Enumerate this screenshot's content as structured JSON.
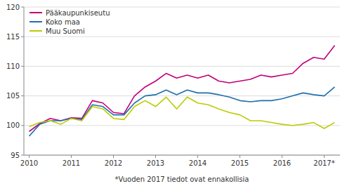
{
  "chart_data": {
    "type": "line",
    "annotations": [
      "*Vuoden 2017 tiedot ovat ennakollisia"
    ],
    "categories": [
      "2010",
      null,
      null,
      null,
      "2011",
      null,
      null,
      null,
      "2012",
      null,
      null,
      null,
      "2013",
      null,
      null,
      null,
      "2014",
      null,
      null,
      null,
      "2015",
      null,
      null,
      null,
      "2016",
      null,
      null,
      null,
      "2017*",
      null
    ],
    "series": [
      {
        "name": "Pääkaupunkiseutu",
        "color": "#C0007B",
        "values": [
          99.0,
          100.3,
          101.2,
          100.8,
          101.3,
          101.2,
          104.2,
          103.8,
          102.2,
          102.0,
          105.0,
          106.5,
          107.5,
          108.8,
          108.0,
          108.5,
          108.0,
          108.5,
          107.5,
          107.2,
          107.5,
          107.8,
          108.5,
          108.2,
          108.5,
          108.8,
          110.5,
          111.5,
          111.2,
          113.5
        ]
      },
      {
        "name": "Koko maa",
        "color": "#1F6FAD",
        "values": [
          98.2,
          100.2,
          100.8,
          100.8,
          101.2,
          101.0,
          103.5,
          103.2,
          101.8,
          101.8,
          103.8,
          105.0,
          105.2,
          106.0,
          105.2,
          106.0,
          105.5,
          105.5,
          105.2,
          104.8,
          104.2,
          104.0,
          104.2,
          104.2,
          104.5,
          105.0,
          105.5,
          105.2,
          105.0,
          106.5
        ]
      },
      {
        "name": "Muu Suomi",
        "color": "#BBCC00",
        "values": [
          99.8,
          100.5,
          100.8,
          100.2,
          101.2,
          100.8,
          103.2,
          102.8,
          101.2,
          101.0,
          103.2,
          104.2,
          103.2,
          104.8,
          102.8,
          104.8,
          103.8,
          103.5,
          102.8,
          102.2,
          101.8,
          100.8,
          100.8,
          100.5,
          100.2,
          100.0,
          100.2,
          100.5,
          99.5,
          100.5
        ]
      }
    ],
    "ylim": [
      95,
      120
    ],
    "yticks": [
      95,
      100,
      105,
      110,
      115,
      120
    ],
    "grid": true,
    "legend": "upper left"
  }
}
